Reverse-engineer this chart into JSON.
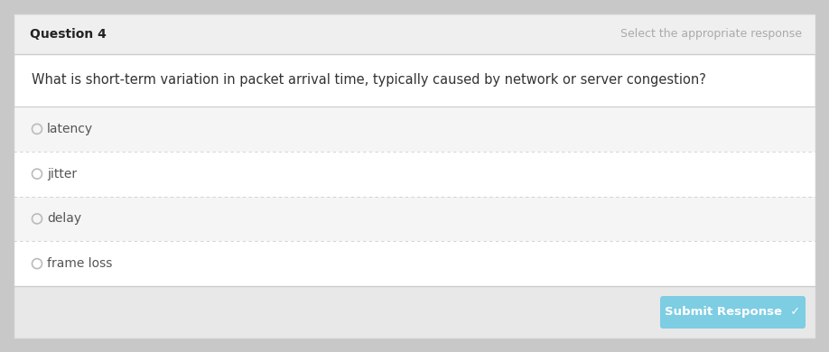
{
  "outer_bg": "#c8c8c8",
  "card_bg": "#ffffff",
  "header_bg": "#efefef",
  "footer_bg": "#e8e8e8",
  "option_bg_alt": "#f5f5f5",
  "header_text": "Question 4",
  "header_subtext": "Select the appropriate response",
  "question": "What is short-term variation in packet arrival time, typically caused by network or server congestion?",
  "options": [
    "latency",
    "jitter",
    "delay",
    "frame loss"
  ],
  "divider_color": "#cccccc",
  "radio_color": "#bbbbbb",
  "text_color": "#555555",
  "header_text_color": "#222222",
  "subtext_color": "#aaaaaa",
  "button_bg": "#7dcde3",
  "button_text": "Submit Response  ✓",
  "button_text_color": "#ffffff",
  "question_text_color": "#333333",
  "card_edge": "#cccccc",
  "fig_w": 9.18,
  "fig_h": 3.9,
  "dpi": 100
}
